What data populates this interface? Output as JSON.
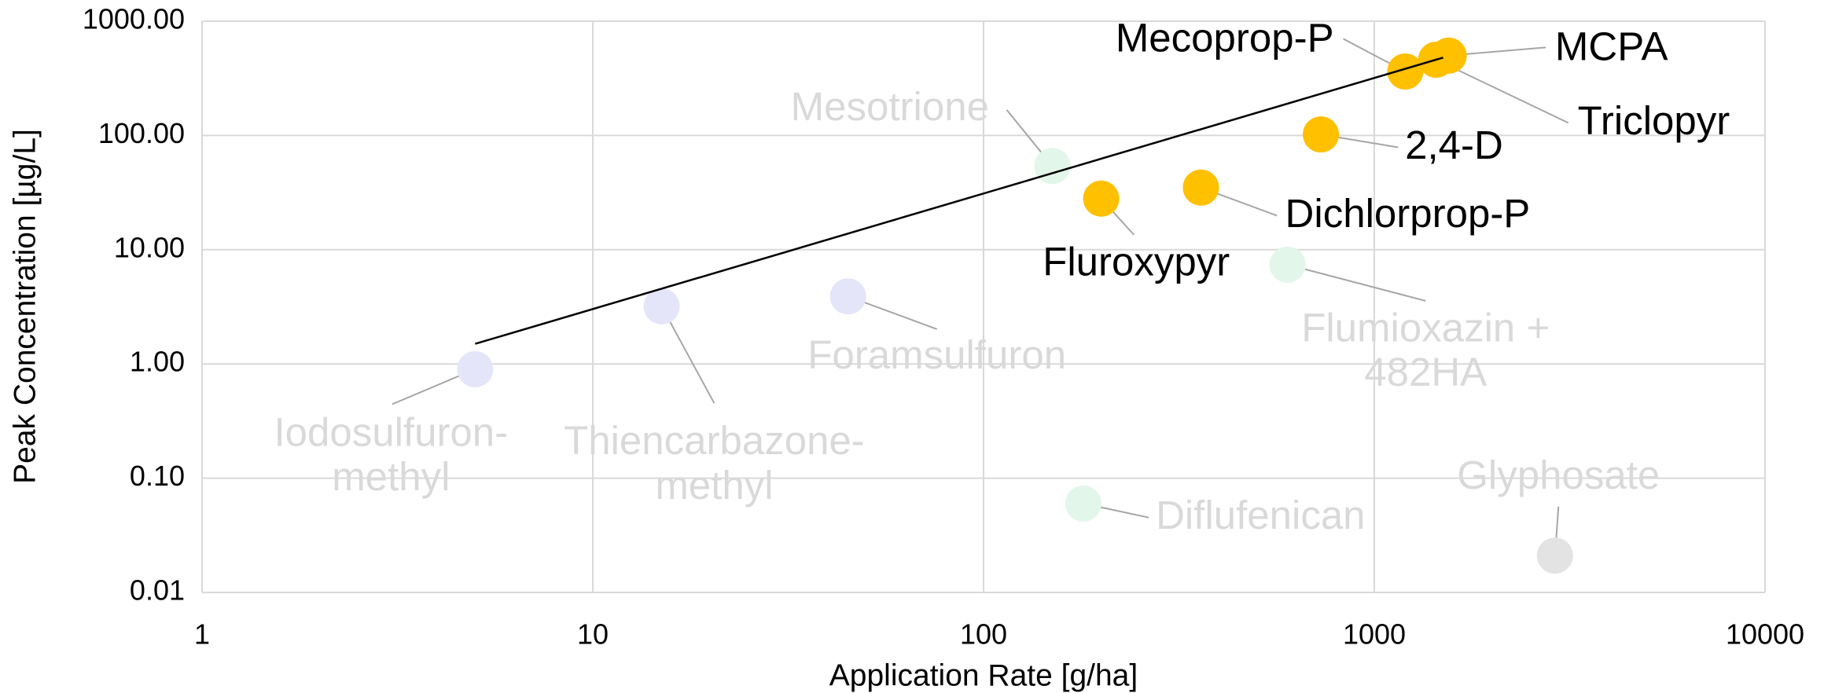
{
  "chart_data": {
    "type": "scatter",
    "xlabel": "Application Rate [g/ha]",
    "ylabel": "Peak Concentration [µg/L]",
    "log_x": true,
    "log_y": true,
    "grid": true,
    "xlim": [
      1,
      10000
    ],
    "xticks": [
      1,
      10,
      100,
      1000,
      10000
    ],
    "ylim": [
      0.01,
      1000
    ],
    "yticks": [
      {
        "value": 0.01,
        "label": "0.01"
      },
      {
        "value": 0.1,
        "label": "0.10"
      },
      {
        "value": 1,
        "label": "1.00"
      },
      {
        "value": 10,
        "label": "10.00"
      },
      {
        "value": 100,
        "label": "100.00"
      },
      {
        "value": 1000,
        "label": "1000.00"
      }
    ],
    "series": [
      {
        "labels": [
          "Iodosulfuron-\nmethyl",
          "Thiencarbazone-\nmethyl",
          "Foramsulfuron",
          "Mesotrione",
          "Fluroxypyr",
          "Diflufenican",
          "Dichlorprop-P",
          "Flumioxazin +\n482HA",
          "2,4-D",
          "Mecoprop-P",
          "Triclopyr",
          "MCPA",
          "Glyphosate"
        ],
        "x": [
          5,
          15,
          45,
          150,
          200,
          180,
          360,
          600,
          730,
          1200,
          1440,
          1550,
          2900
        ],
        "values": [
          0.9,
          3.2,
          3.9,
          54,
          28,
          0.06,
          35,
          7.4,
          102,
          363,
          460,
          500,
          0.021
        ],
        "colors": [
          "#e5e5fa",
          "#e5e5fa",
          "#e5e5fa",
          "#e3f6ea",
          "#ffc000",
          "#e3f6ea",
          "#ffc000",
          "#e3f6ea",
          "#ffc000",
          "#ffc000",
          "#ffc000",
          "#ffc000",
          "#e3e3e3"
        ],
        "label_colors": [
          "#d9d9d9",
          "#d9d9d9",
          "#d9d9d9",
          "#d9d9d9",
          "#000000",
          "#d9d9d9",
          "#000000",
          "#d9d9d9",
          "#000000",
          "#000000",
          "#000000",
          "#000000",
          "#d9d9d9"
        ]
      }
    ],
    "trendline": {
      "x": [
        5,
        1500
      ],
      "y": [
        1.5,
        480
      ],
      "color": "#000000"
    }
  }
}
